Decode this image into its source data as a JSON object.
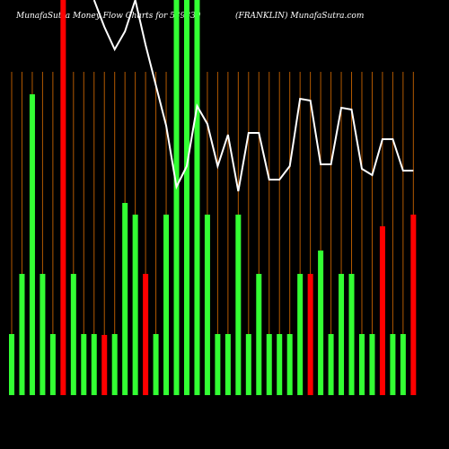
{
  "chart_data": {
    "type": "bar",
    "title": "MunafaSutra Money Flow Charts for 539839",
    "subtitle": "(FRANKLIN) MunafaSutra.com",
    "categories": [
      null,
      null,
      null,
      null,
      null,
      null,
      null,
      null,
      null,
      null,
      null,
      null,
      null,
      null,
      null,
      null,
      null,
      null,
      null,
      null,
      null,
      null,
      null,
      null,
      null,
      null,
      null,
      null,
      null,
      null,
      null,
      null,
      null,
      null,
      null,
      null,
      null,
      null,
      null,
      null
    ],
    "values": [
      68,
      135,
      335,
      135,
      68,
      440,
      135,
      68,
      68,
      67,
      68,
      214,
      201,
      135,
      68,
      201,
      440,
      440,
      440,
      201,
      68,
      68,
      201,
      68,
      135,
      68,
      68,
      68,
      135,
      135,
      161,
      68,
      135,
      135,
      68,
      68,
      188,
      68,
      68,
      201
    ],
    "colors": [
      "#33ff33",
      "#33ff33",
      "#33ff33",
      "#33ff33",
      "#33ff33",
      "#ff0000",
      "#33ff33",
      "#33ff33",
      "#33ff33",
      "#ff0000",
      "#33ff33",
      "#33ff33",
      "#33ff33",
      "#ff0000",
      "#33ff33",
      "#33ff33",
      "#33ff33",
      "#33ff33",
      "#33ff33",
      "#33ff33",
      "#33ff33",
      "#33ff33",
      "#33ff33",
      "#33ff33",
      "#33ff33",
      "#33ff33",
      "#33ff33",
      "#33ff33",
      "#33ff33",
      "#ff0000",
      "#33ff33",
      "#33ff33",
      "#33ff33",
      "#33ff33",
      "#33ff33",
      "#33ff33",
      "#ff0000",
      "#33ff33",
      "#33ff33",
      "#ff0000"
    ],
    "line": {
      "color": "#ffffff",
      "values": [
        null,
        null,
        null,
        null,
        null,
        null,
        null,
        null,
        440,
        410,
        385,
        405,
        440,
        390,
        345,
        300,
        232,
        255,
        322,
        302,
        255,
        290,
        227,
        292,
        292,
        240,
        240,
        255,
        330,
        328,
        257,
        257,
        320,
        318,
        252,
        245,
        285,
        285,
        250,
        250
      ]
    },
    "ylim": [
      0,
      440
    ],
    "grid_color": "#b35900"
  }
}
